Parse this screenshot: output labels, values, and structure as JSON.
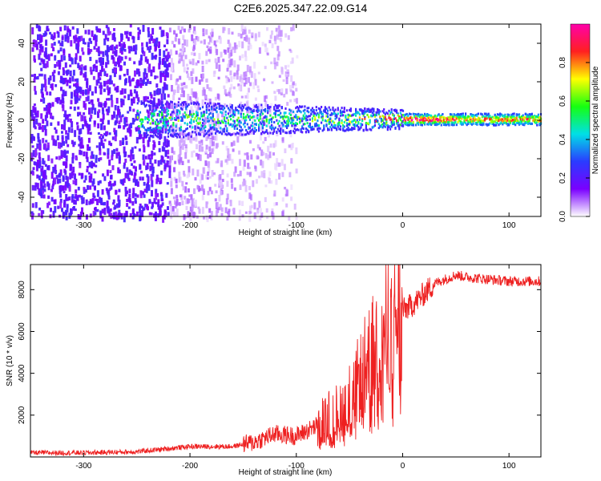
{
  "page": {
    "title": "C2E6.2025.347.22.09.G14"
  },
  "colors": {
    "snr_line": "#ee2020",
    "colormap": [
      "#ffffff",
      "#7a00ff",
      "#2a3cff",
      "#00e0e6",
      "#16ff10",
      "#ffff00",
      "#ff2020",
      "#ff00aa"
    ]
  },
  "chart_data": [
    {
      "type": "heatmap",
      "title": "C2E6.2025.347.22.09.G14",
      "xlabel": "Height of straight line (km)",
      "ylabel": "Frequency (Hz)",
      "xlim": [
        -350,
        130
      ],
      "ylim": [
        -50,
        50
      ],
      "x_ticks": [
        -300,
        -200,
        -100,
        0,
        100
      ],
      "y_ticks": [
        -40,
        -20,
        0,
        20,
        40
      ],
      "grid": false,
      "colorbar": {
        "label": "Normalized spectral amplitude",
        "range": [
          0,
          1
        ],
        "ticks": [
          0.0,
          0.2,
          0.4,
          0.6,
          0.8
        ]
      },
      "description_points": {
        "signal_center_freq_hz": 0,
        "noise_region_x_range": [
          -350,
          -100
        ],
        "noise_amplitude_typical": 0.15,
        "coherent_region_x_range": [
          -250,
          130
        ],
        "coherent_amplitude_peaks": [
          {
            "x": -210,
            "amp": 0.5
          },
          {
            "x": -120,
            "amp": 0.45
          },
          {
            "x": -60,
            "amp": 0.6
          },
          {
            "x": -5,
            "amp": 0.9
          },
          {
            "x": 15,
            "amp": 0.95
          },
          {
            "x": 60,
            "amp": 0.7
          },
          {
            "x": 90,
            "amp": 0.7
          }
        ]
      }
    },
    {
      "type": "line",
      "xlabel": "Height of straight line (km)",
      "ylabel": "SNR (10 * v/v)",
      "xlim": [
        -350,
        130
      ],
      "ylim": [
        0,
        9200
      ],
      "x_ticks": [
        -300,
        -200,
        -100,
        0,
        100
      ],
      "y_ticks": [
        2000,
        4000,
        6000,
        8000
      ],
      "grid": false,
      "series": [
        {
          "x": [
            -350,
            -300,
            -250,
            -200,
            -180,
            -160,
            -140,
            -120,
            -100,
            -80,
            -60,
            -50,
            -40,
            -30,
            -20,
            -10,
            0,
            10,
            20,
            30,
            40,
            50,
            60,
            80,
            100,
            130
          ],
          "values": [
            200,
            200,
            250,
            500,
            500,
            500,
            700,
            1100,
            1000,
            1500,
            2200,
            2800,
            3800,
            5000,
            5800,
            6400,
            7000,
            7300,
            7800,
            8300,
            8500,
            8700,
            8600,
            8500,
            8400,
            8400
          ]
        }
      ]
    }
  ]
}
